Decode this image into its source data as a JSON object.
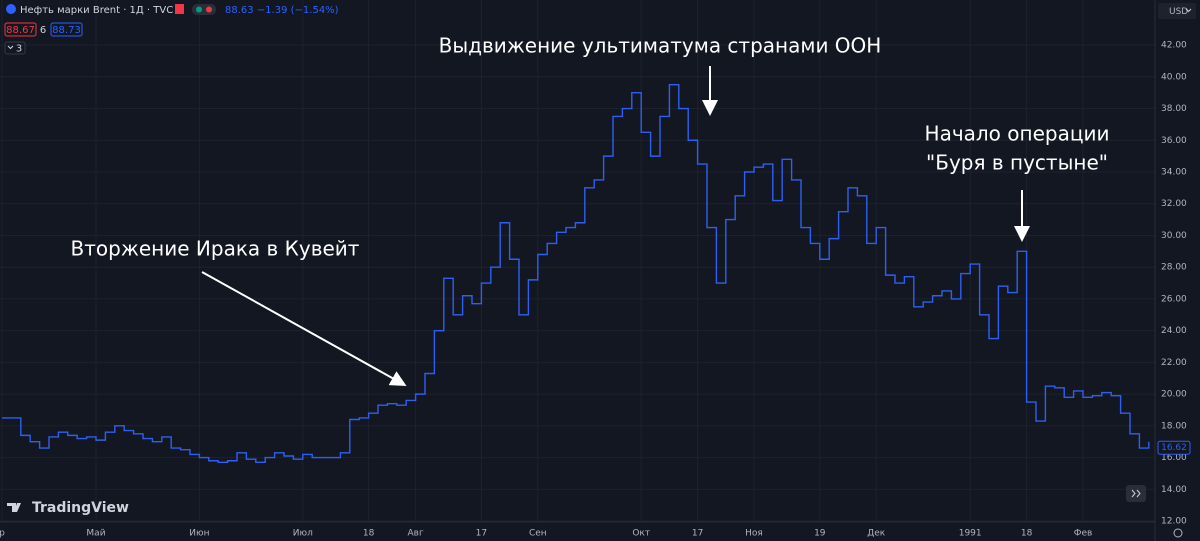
{
  "header": {
    "symbol": "Нефть марки Brent · 1Д · TVC",
    "quote": "88.63 −1.39 (−1.54%)",
    "sell": "88.67",
    "spread": "6",
    "buy": "88.73",
    "indicators": "3",
    "currency": "USD",
    "logo": "TradingView"
  },
  "chart_data": {
    "type": "line",
    "step": true,
    "color": "#2f5ff0",
    "grid": true,
    "categories": [
      "р",
      null,
      null,
      null,
      null,
      null,
      null,
      null,
      null,
      null,
      "Май",
      null,
      null,
      null,
      null,
      null,
      null,
      null,
      null,
      null,
      null,
      "Июн",
      null,
      null,
      null,
      null,
      null,
      null,
      null,
      null,
      null,
      null,
      "Июл",
      null,
      null,
      null,
      null,
      null,
      null,
      "18",
      null,
      null,
      null,
      null,
      "Авг",
      null,
      null,
      null,
      null,
      null,
      null,
      "17",
      null,
      null,
      null,
      null,
      null,
      "Сен",
      null,
      null,
      null,
      null,
      null,
      null,
      null,
      null,
      null,
      null,
      "Окт",
      null,
      null,
      null,
      null,
      null,
      "17",
      null,
      null,
      null,
      null,
      null,
      "Ноя",
      null,
      null,
      null,
      null,
      null,
      null,
      "19",
      null,
      null,
      null,
      null,
      null,
      "Дек",
      null,
      null,
      null,
      null,
      null,
      null,
      null,
      null,
      null,
      "1991",
      null,
      null,
      null,
      null,
      null,
      "18",
      null,
      null,
      null,
      null,
      null,
      "Фев",
      null,
      null,
      null,
      null,
      null,
      null,
      null
    ],
    "values": [
      18.5,
      18.5,
      17.4,
      17.0,
      16.6,
      17.3,
      17.6,
      17.4,
      17.2,
      17.3,
      17.1,
      17.6,
      18.0,
      17.7,
      17.5,
      17.2,
      17.0,
      17.3,
      16.6,
      16.5,
      16.2,
      16.0,
      15.8,
      15.7,
      15.8,
      16.3,
      15.9,
      15.7,
      16.0,
      16.3,
      16.1,
      15.9,
      16.2,
      16.0,
      16.0,
      16.0,
      16.3,
      18.4,
      18.5,
      18.8,
      19.3,
      19.4,
      19.3,
      19.6,
      20.0,
      21.3,
      24.0,
      27.3,
      25.0,
      26.2,
      25.7,
      27.0,
      28.0,
      30.8,
      28.5,
      25.0,
      27.2,
      28.8,
      29.5,
      30.2,
      30.5,
      30.8,
      33.0,
      33.5,
      35.0,
      37.5,
      38.0,
      39.0,
      36.5,
      35.0,
      37.5,
      39.5,
      38.0,
      36.0,
      34.5,
      30.5,
      27.0,
      31.0,
      32.5,
      34.0,
      34.3,
      34.5,
      32.2,
      34.8,
      33.5,
      30.5,
      29.5,
      28.5,
      29.8,
      31.5,
      33.0,
      32.5,
      29.5,
      30.5,
      27.5,
      27.0,
      27.4,
      25.5,
      25.8,
      26.2,
      26.5,
      26.0,
      27.6,
      28.2,
      25.0,
      23.5,
      26.8,
      26.4,
      29.0,
      19.5,
      18.3,
      20.5,
      20.4,
      19.8,
      20.2,
      19.8,
      19.9,
      20.1,
      19.9,
      18.8,
      17.5,
      16.6,
      17.0
    ],
    "last_price": 16.62,
    "ylim": [
      11.94,
      44.84
    ],
    "yticks": [
      {
        "value": 12,
        "label": "12.00"
      },
      {
        "value": 14,
        "label": "14.00"
      },
      {
        "value": 16,
        "label": "16.00"
      },
      {
        "value": 18,
        "label": "18.00"
      },
      {
        "value": 20,
        "label": "20.00"
      },
      {
        "value": 22,
        "label": "22.00"
      },
      {
        "value": 24,
        "label": "24.00"
      },
      {
        "value": 26,
        "label": "26.00"
      },
      {
        "value": 28,
        "label": "28.00"
      },
      {
        "value": 30,
        "label": "30.00"
      },
      {
        "value": 32,
        "label": "32.00"
      },
      {
        "value": 34,
        "label": "34.00"
      },
      {
        "value": 36,
        "label": "36.00"
      },
      {
        "value": 38,
        "label": "38.00"
      },
      {
        "value": 40,
        "label": "40.00"
      },
      {
        "value": 42,
        "label": "42.00"
      }
    ],
    "annotations": [
      "Выдвижение ультиматума странами ООН",
      "Вторжение Ирака в Кувейт",
      "Начало операции",
      "\"Буря в пустыне\""
    ]
  }
}
